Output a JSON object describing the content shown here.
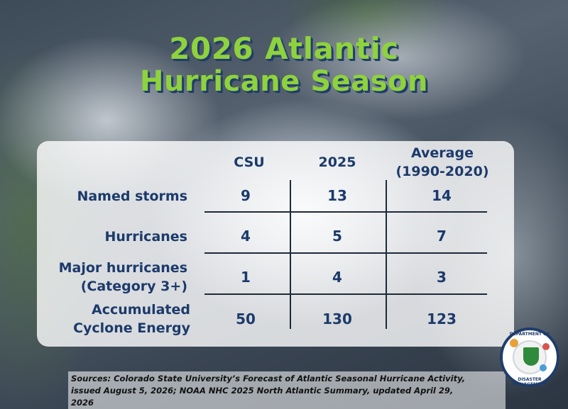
{
  "title": {
    "year": "2026",
    "line1_rest": "Atlantic",
    "line2": "Hurricane Season"
  },
  "table": {
    "columns": [
      "CSU",
      "2025",
      "Average",
      "(1990-2020)"
    ],
    "rows": [
      {
        "label": [
          "Named storms"
        ],
        "values": [
          "9",
          "13",
          "14"
        ]
      },
      {
        "label": [
          "Hurricanes"
        ],
        "values": [
          "4",
          "5",
          "7"
        ]
      },
      {
        "label": [
          "Major hurricanes",
          "(Category 3+)"
        ],
        "values": [
          "1",
          "4",
          "3"
        ]
      },
      {
        "label": [
          "Accumulated",
          "Cyclone Energy"
        ],
        "values": [
          "50",
          "130",
          "123"
        ]
      }
    ]
  },
  "sources": {
    "line1": "Sources: Colorado State University’s Forecast of Atlantic Seasonal Hurricane Activity,",
    "line2": "issued August 5, 2026; NOAA NHC 2025 North Atlantic Summary, updated April 29,",
    "line3": "2026"
  },
  "logo": {
    "top_text": "DEPARTMENT OF",
    "bottom_text": "DISASTER MANAGEMENT"
  },
  "colors": {
    "title_green": "#8ed23d",
    "title_shadow": "#1f3d6b",
    "table_text": "#1c3a6b"
  }
}
